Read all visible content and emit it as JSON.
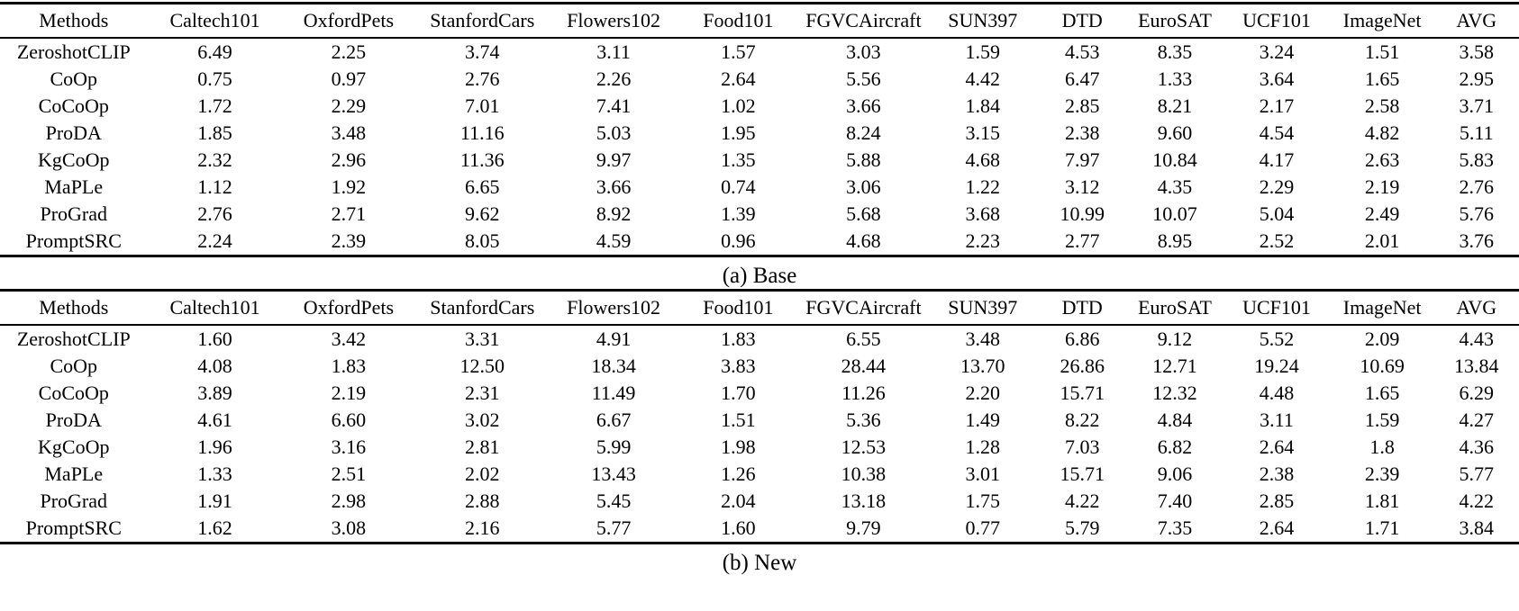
{
  "colors": {
    "background": "#ffffff",
    "text": "#000000",
    "rule": "#000000"
  },
  "tables": [
    {
      "caption": "(a) Base",
      "columns": [
        "Methods",
        "Caltech101",
        "OxfordPets",
        "StanfordCars",
        "Flowers102",
        "Food101",
        "FGVCAircraft",
        "SUN397",
        "DTD",
        "EuroSAT",
        "UCF101",
        "ImageNet",
        "AVG"
      ],
      "rows": [
        {
          "method": "ZeroshotCLIP",
          "values": [
            "6.49",
            "2.25",
            "3.74",
            "3.11",
            "1.57",
            "3.03",
            "1.59",
            "4.53",
            "8.35",
            "3.24",
            "1.51",
            "3.58"
          ]
        },
        {
          "method": "CoOp",
          "values": [
            "0.75",
            "0.97",
            "2.76",
            "2.26",
            "2.64",
            "5.56",
            "4.42",
            "6.47",
            "1.33",
            "3.64",
            "1.65",
            "2.95"
          ]
        },
        {
          "method": "CoCoOp",
          "values": [
            "1.72",
            "2.29",
            "7.01",
            "7.41",
            "1.02",
            "3.66",
            "1.84",
            "2.85",
            "8.21",
            "2.17",
            "2.58",
            "3.71"
          ]
        },
        {
          "method": "ProDA",
          "values": [
            "1.85",
            "3.48",
            "11.16",
            "5.03",
            "1.95",
            "8.24",
            "3.15",
            "2.38",
            "9.60",
            "4.54",
            "4.82",
            "5.11"
          ]
        },
        {
          "method": "KgCoOp",
          "values": [
            "2.32",
            "2.96",
            "11.36",
            "9.97",
            "1.35",
            "5.88",
            "4.68",
            "7.97",
            "10.84",
            "4.17",
            "2.63",
            "5.83"
          ]
        },
        {
          "method": "MaPLe",
          "values": [
            "1.12",
            "1.92",
            "6.65",
            "3.66",
            "0.74",
            "3.06",
            "1.22",
            "3.12",
            "4.35",
            "2.29",
            "2.19",
            "2.76"
          ]
        },
        {
          "method": "ProGrad",
          "values": [
            "2.76",
            "2.71",
            "9.62",
            "8.92",
            "1.39",
            "5.68",
            "3.68",
            "10.99",
            "10.07",
            "5.04",
            "2.49",
            "5.76"
          ]
        },
        {
          "method": "PromptSRC",
          "values": [
            "2.24",
            "2.39",
            "8.05",
            "4.59",
            "0.96",
            "4.68",
            "2.23",
            "2.77",
            "8.95",
            "2.52",
            "2.01",
            "3.76"
          ]
        }
      ]
    },
    {
      "caption": "(b) New",
      "columns": [
        "Methods",
        "Caltech101",
        "OxfordPets",
        "StanfordCars",
        "Flowers102",
        "Food101",
        "FGVCAircraft",
        "SUN397",
        "DTD",
        "EuroSAT",
        "UCF101",
        "ImageNet",
        "AVG"
      ],
      "rows": [
        {
          "method": "ZeroshotCLIP",
          "values": [
            "1.60",
            "3.42",
            "3.31",
            "4.91",
            "1.83",
            "6.55",
            "3.48",
            "6.86",
            "9.12",
            "5.52",
            "2.09",
            "4.43"
          ]
        },
        {
          "method": "CoOp",
          "values": [
            "4.08",
            "1.83",
            "12.50",
            "18.34",
            "3.83",
            "28.44",
            "13.70",
            "26.86",
            "12.71",
            "19.24",
            "10.69",
            "13.84"
          ]
        },
        {
          "method": "CoCoOp",
          "values": [
            "3.89",
            "2.19",
            "2.31",
            "11.49",
            "1.70",
            "11.26",
            "2.20",
            "15.71",
            "12.32",
            "4.48",
            "1.65",
            "6.29"
          ]
        },
        {
          "method": "ProDA",
          "values": [
            "4.61",
            "6.60",
            "3.02",
            "6.67",
            "1.51",
            "5.36",
            "1.49",
            "8.22",
            "4.84",
            "3.11",
            "1.59",
            "4.27"
          ]
        },
        {
          "method": "KgCoOp",
          "values": [
            "1.96",
            "3.16",
            "2.81",
            "5.99",
            "1.98",
            "12.53",
            "1.28",
            "7.03",
            "6.82",
            "2.64",
            "1.8",
            "4.36"
          ]
        },
        {
          "method": "MaPLe",
          "values": [
            "1.33",
            "2.51",
            "2.02",
            "13.43",
            "1.26",
            "10.38",
            "3.01",
            "15.71",
            "9.06",
            "2.38",
            "2.39",
            "5.77"
          ]
        },
        {
          "method": "ProGrad",
          "values": [
            "1.91",
            "2.98",
            "2.88",
            "5.45",
            "2.04",
            "13.18",
            "1.75",
            "4.22",
            "7.40",
            "2.85",
            "1.81",
            "4.22"
          ]
        },
        {
          "method": "PromptSRC",
          "values": [
            "1.62",
            "3.08",
            "2.16",
            "5.77",
            "1.60",
            "9.79",
            "0.77",
            "5.79",
            "7.35",
            "2.64",
            "1.71",
            "3.84"
          ]
        }
      ]
    }
  ]
}
